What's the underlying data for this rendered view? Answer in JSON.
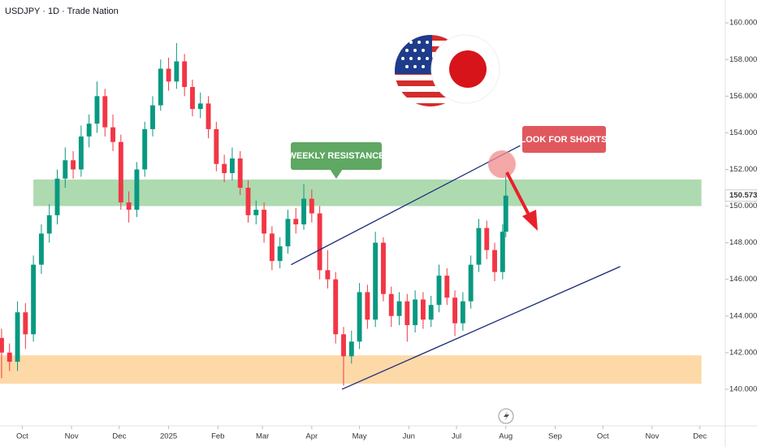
{
  "chart_data": {
    "type": "candlestick",
    "title": "USDJPY · 1D · Trade Nation",
    "x": [
      -13,
      -8,
      -3,
      2,
      7,
      12,
      17,
      22,
      27,
      32,
      37,
      42,
      47,
      52,
      57,
      62,
      67,
      72,
      77,
      82,
      87,
      92,
      97,
      102,
      107,
      112,
      117,
      122,
      127,
      132,
      137,
      142,
      147,
      152,
      157,
      162,
      167,
      172,
      177,
      182,
      187,
      192,
      197,
      202,
      207,
      212,
      217,
      222,
      227,
      232,
      237,
      242,
      247,
      252,
      257,
      262,
      267,
      272,
      277,
      282,
      287,
      292,
      297,
      302,
      304
    ],
    "open": [
      142.8,
      142.0,
      141.5,
      144.2,
      143.0,
      146.8,
      148.5,
      149.5,
      151.5,
      152.5,
      152.0,
      153.8,
      154.5,
      156.0,
      154.3,
      153.5,
      150.2,
      149.8,
      152.0,
      154.2,
      155.5,
      157.5,
      156.8,
      157.9,
      156.5,
      155.3,
      155.6,
      154.2,
      152.3,
      151.8,
      152.6,
      151.0,
      149.5,
      149.8,
      148.5,
      147.0,
      147.8,
      149.3,
      149.0,
      150.4,
      149.6,
      146.5,
      146.0,
      143.0,
      141.8,
      142.6,
      145.3,
      143.8,
      148.0,
      145.2,
      144.0,
      144.8,
      143.5,
      144.9,
      143.8,
      144.6,
      146.2,
      145.0,
      143.6,
      144.8,
      146.8,
      148.8,
      147.6,
      146.4,
      148.6
    ],
    "high": [
      143.3,
      142.5,
      144.8,
      144.7,
      147.3,
      149.0,
      150.1,
      152.0,
      153.2,
      153.0,
      154.4,
      155.0,
      156.8,
      156.4,
      155.0,
      153.9,
      150.8,
      152.4,
      154.6,
      156.0,
      158.0,
      158.1,
      158.9,
      158.3,
      156.9,
      156.2,
      156.0,
      154.6,
      152.8,
      153.2,
      153.0,
      151.4,
      150.3,
      150.2,
      148.9,
      148.3,
      149.8,
      149.9,
      151.2,
      150.9,
      150.0,
      147.6,
      146.4,
      143.4,
      143.2,
      145.8,
      145.7,
      148.6,
      148.3,
      145.6,
      145.3,
      145.2,
      145.4,
      145.3,
      145.1,
      146.8,
      146.6,
      145.4,
      145.3,
      147.3,
      149.3,
      149.2,
      148.0,
      149.0,
      151.8
    ],
    "low": [
      140.6,
      141.0,
      141.0,
      142.2,
      142.6,
      146.3,
      148.0,
      149.0,
      151.0,
      151.5,
      151.6,
      153.2,
      154.0,
      153.8,
      153.0,
      149.8,
      149.1,
      149.4,
      151.6,
      153.8,
      155.2,
      156.3,
      156.4,
      156.0,
      154.9,
      154.8,
      153.7,
      151.9,
      151.3,
      151.4,
      150.6,
      149.1,
      149.0,
      148.0,
      146.5,
      146.6,
      147.4,
      148.5,
      148.7,
      149.1,
      146.0,
      145.5,
      142.5,
      140.2,
      141.4,
      142.2,
      143.3,
      143.4,
      144.8,
      143.4,
      143.5,
      142.6,
      143.1,
      143.3,
      143.4,
      144.2,
      144.6,
      142.9,
      143.2,
      144.4,
      146.4,
      147.1,
      145.9,
      146.0,
      148.3
    ],
    "close": [
      142.0,
      141.5,
      144.2,
      143.0,
      146.8,
      148.5,
      149.5,
      151.5,
      152.5,
      152.0,
      153.8,
      154.5,
      156.0,
      154.3,
      153.5,
      150.2,
      149.8,
      152.0,
      154.2,
      155.5,
      157.5,
      156.8,
      157.9,
      156.5,
      155.3,
      155.6,
      154.2,
      152.3,
      151.8,
      152.6,
      151.0,
      149.5,
      149.8,
      148.5,
      147.0,
      147.8,
      149.3,
      149.0,
      150.4,
      149.6,
      146.5,
      146.0,
      143.0,
      141.8,
      142.6,
      145.3,
      143.8,
      148.0,
      145.2,
      144.0,
      144.8,
      143.5,
      144.9,
      143.8,
      144.6,
      146.2,
      145.0,
      143.6,
      144.8,
      146.8,
      148.8,
      147.6,
      146.4,
      148.6,
      150.57
    ],
    "up_color": "#089981",
    "down_color": "#f23645",
    "xlim": [
      -14,
      442
    ],
    "xticks": [
      {
        "value": 0,
        "label": "Oct"
      },
      {
        "value": 31,
        "label": "Nov"
      },
      {
        "value": 61,
        "label": "Dec"
      },
      {
        "value": 92,
        "label": "2025"
      },
      {
        "value": 123,
        "label": "Feb"
      },
      {
        "value": 151,
        "label": "Mar"
      },
      {
        "value": 182,
        "label": "Apr"
      },
      {
        "value": 212,
        "label": "May"
      },
      {
        "value": 243,
        "label": "Jun"
      },
      {
        "value": 273,
        "label": "Jul"
      },
      {
        "value": 304,
        "label": "Aug"
      },
      {
        "value": 335,
        "label": "Sep"
      },
      {
        "value": 365,
        "label": "Oct"
      },
      {
        "value": 396,
        "label": "Nov"
      },
      {
        "value": 426,
        "label": "Dec"
      }
    ],
    "ylim": [
      138.0,
      161.25
    ],
    "yticks": [
      {
        "value": 140,
        "label": "140.000"
      },
      {
        "value": 142,
        "label": "142.000"
      },
      {
        "value": 144,
        "label": "144.000"
      },
      {
        "value": 146,
        "label": "146.000"
      },
      {
        "value": 148,
        "label": "148.000"
      },
      {
        "value": 150,
        "label": "150.000"
      },
      {
        "value": 152,
        "label": "152.000"
      },
      {
        "value": 154,
        "label": "154.000"
      },
      {
        "value": 156,
        "label": "156.000"
      },
      {
        "value": 158,
        "label": "158.000"
      },
      {
        "value": 160,
        "label": "160.000"
      }
    ],
    "last_price": 150.573,
    "zones": [
      {
        "start": 7,
        "end": 427,
        "low": 150.0,
        "high": 151.45,
        "color": "#a5d6a7"
      },
      {
        "start": -14,
        "end": 427,
        "low": 140.3,
        "high": 141.85,
        "color": "#fdd59e"
      }
    ],
    "channel": [
      {
        "x": [
          169,
          313
        ],
        "y": [
          146.8,
          153.3
        ]
      },
      {
        "x": [
          201,
          376
        ],
        "y": [
          140.0,
          146.7
        ]
      }
    ],
    "annotations": [
      "WEEKLY RESISTANCE",
      "LOOK FOR SHORTS"
    ]
  }
}
